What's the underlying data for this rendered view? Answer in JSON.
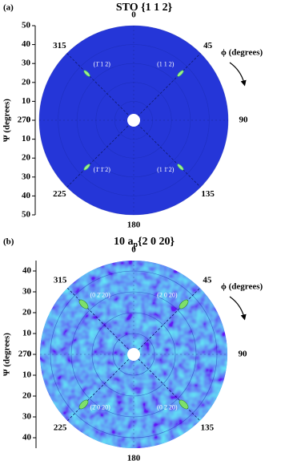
{
  "chart_data": [
    {
      "type": "pole-figure",
      "panel": "(a)",
      "title": "STO {1 1 2}",
      "ylabel": "Ψ (degrees)",
      "phi_label": "ϕ (degrees)",
      "phi_ticks": [
        0,
        45,
        90,
        135,
        180,
        225,
        270,
        315
      ],
      "rlim": [
        0,
        50
      ],
      "rticks": [
        0,
        10,
        20,
        30,
        40,
        50
      ],
      "color": "#2536d8",
      "noise": false,
      "spots": [
        {
          "phi": 315,
          "psi": 35,
          "label": "(1̄ 1 2)"
        },
        {
          "phi": 45,
          "psi": 35,
          "label": "(1 1 2)"
        },
        {
          "phi": 135,
          "psi": 35,
          "label": "(1 1̄ 2)"
        },
        {
          "phi": 225,
          "psi": 35,
          "label": "(1̄ 1̄ 2)"
        }
      ]
    },
    {
      "type": "pole-figure",
      "panel": "(b)",
      "title": "10 a",
      "title_subscript": "p",
      "title_suffix": "{2 0 20}",
      "ylabel": "Ψ (degrees)",
      "phi_label": "ϕ (degrees)",
      "phi_ticks": [
        0,
        45,
        90,
        135,
        180,
        225,
        270,
        315
      ],
      "rlim": [
        0,
        45
      ],
      "rticks": [
        0,
        10,
        20,
        30,
        40
      ],
      "color": "#3f74e4",
      "noise": true,
      "spots": [
        {
          "phi": 315,
          "psi": 34,
          "label": "(0 2̄ 20)"
        },
        {
          "phi": 45,
          "psi": 34,
          "label": "(2 0 20)"
        },
        {
          "phi": 135,
          "psi": 34,
          "label": "(0 2 20)"
        },
        {
          "phi": 225,
          "psi": 34,
          "label": "(2̄ 0 20)"
        }
      ]
    }
  ]
}
